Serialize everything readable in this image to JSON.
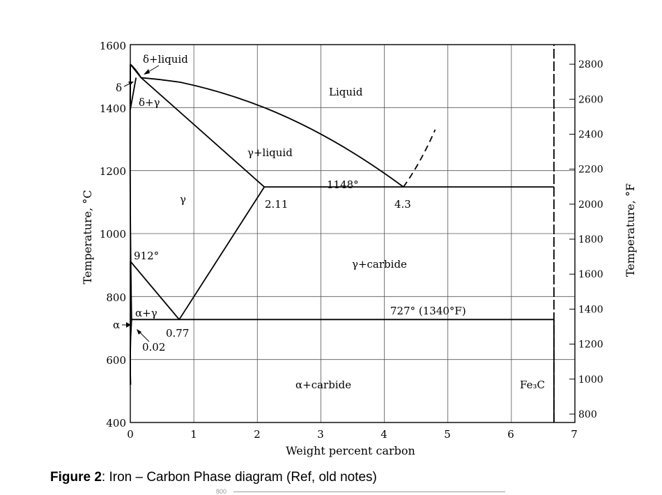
{
  "chart_data": {
    "type": "line",
    "xlabel": "Weight percent carbon",
    "ylabel": "Temperature, °C",
    "y2label": "Temperature, °F",
    "xlim": [
      0,
      7
    ],
    "ylim": [
      400,
      1600
    ],
    "x_ticks": [
      "0",
      "1",
      "2",
      "3",
      "4",
      "5",
      "6",
      "7"
    ],
    "y_ticks": [
      "400",
      "600",
      "800",
      "1000",
      "1200",
      "1400",
      "1600"
    ],
    "y2_ticks": [
      "800",
      "1000",
      "1200",
      "1400",
      "1600",
      "1800",
      "2000",
      "2200",
      "2400",
      "2600",
      "2800"
    ],
    "grid": true,
    "series": [
      {
        "values": [
          [
            0,
            1538
          ],
          [
            0.17,
            1495
          ],
          [
            0.8,
            1480
          ],
          [
            2.11,
            1400
          ],
          [
            4.3,
            1148
          ]
        ]
      },
      {
        "values": [
          [
            0.17,
            1495
          ],
          [
            2.11,
            1148
          ]
        ]
      },
      {
        "values": [
          [
            2.11,
            1148
          ],
          [
            0.77,
            727
          ]
        ]
      },
      {
        "values": [
          [
            0,
            912
          ],
          [
            0.77,
            727
          ]
        ]
      },
      {
        "values": [
          [
            0,
            1538
          ],
          [
            0.17,
            1495
          ]
        ]
      },
      {
        "values": [
          [
            0,
            1538
          ],
          [
            0.17,
            1495
          ]
        ]
      },
      {
        "values": [
          [
            0,
            1394
          ],
          [
            0.09,
            1495
          ]
        ]
      },
      {
        "values": [
          [
            0.02,
            727
          ],
          [
            0,
            1538
          ]
        ]
      },
      {
        "values": [
          [
            0.02,
            727
          ],
          [
            0.005,
            520
          ]
        ]
      },
      {
        "values": [
          [
            0.02,
            727
          ],
          [
            0.77,
            727
          ]
        ]
      },
      {
        "values": [
          [
            0.77,
            727
          ],
          [
            6.67,
            727
          ]
        ]
      },
      {
        "values": [
          [
            2.11,
            1148
          ],
          [
            6.67,
            1148
          ]
        ]
      },
      {
        "values": [
          [
            6.67,
            400
          ],
          [
            6.67,
            1600
          ]
        ]
      },
      {
        "values": [
          [
            4.3,
            1148
          ],
          [
            4.8,
            1330
          ]
        ]
      }
    ],
    "regions": [
      "δ+liquid",
      "δ",
      "δ+γ",
      "Liquid",
      "γ+liquid",
      "γ",
      "γ+carbide",
      "α+γ",
      "α",
      "α+carbide",
      "Fe₃C"
    ],
    "annotations": [
      "1148°",
      "2.11",
      "4.3",
      "912°",
      "0.77",
      "0.02",
      "727° (1340°F)"
    ]
  },
  "caption": {
    "label": "Figure 2",
    "text": ":  Iron – Carbon Phase diagram (Ref, old notes)"
  },
  "cut_off": {
    "tick": "800"
  }
}
